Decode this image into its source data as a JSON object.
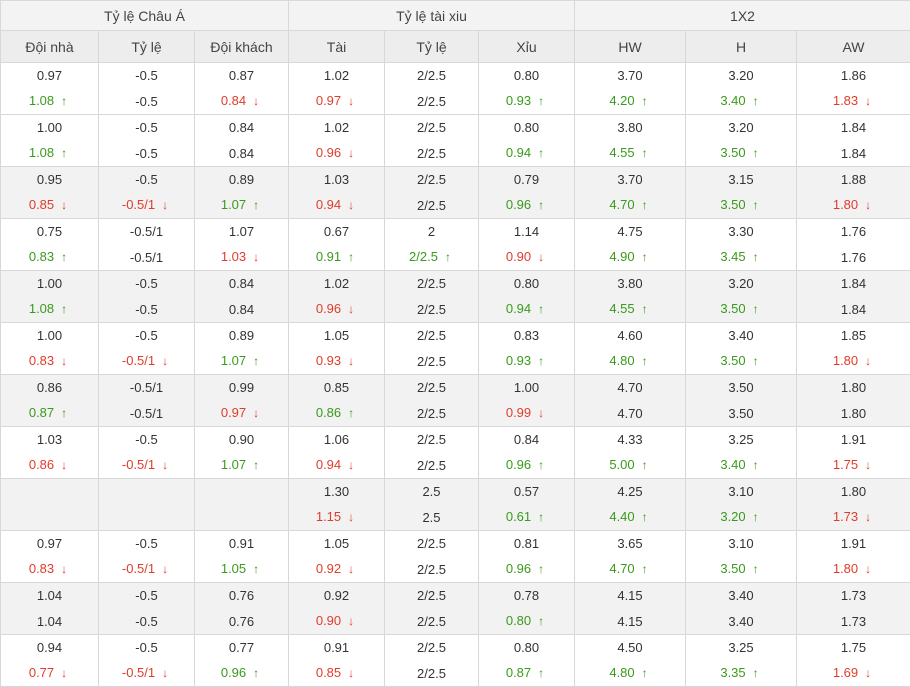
{
  "header": {
    "groups": [
      "Tỷ lệ Châu Á",
      "Tỷ lệ tài xiu",
      "1X2"
    ],
    "columns": [
      "Đội nhà",
      "Tỷ lệ",
      "Đội khách",
      "Tài",
      "Tỷ lệ",
      "Xỉu",
      "HW",
      "H",
      "AW"
    ]
  },
  "colors": {
    "up": "#3a9a1b",
    "down": "#e03c2c",
    "shaded_row": "#f2f2f2"
  },
  "icons": {
    "up": "arrow-up-icon",
    "down": "arrow-down-icon"
  },
  "rows": [
    {
      "shade": false,
      "open": [
        "0.97",
        "-0.5",
        "0.87",
        "1.02",
        "2/2.5",
        "0.80",
        "3.70",
        "3.20",
        "1.86"
      ],
      "live": [
        [
          "1.08",
          "up"
        ],
        [
          "-0.5",
          ""
        ],
        [
          "0.84",
          "down"
        ],
        [
          "0.97",
          "down"
        ],
        [
          "2/2.5",
          ""
        ],
        [
          "0.93",
          "up"
        ],
        [
          "4.20",
          "up"
        ],
        [
          "3.40",
          "up"
        ],
        [
          "1.83",
          "down"
        ]
      ]
    },
    {
      "shade": false,
      "open": [
        "1.00",
        "-0.5",
        "0.84",
        "1.02",
        "2/2.5",
        "0.80",
        "3.80",
        "3.20",
        "1.84"
      ],
      "live": [
        [
          "1.08",
          "up"
        ],
        [
          "-0.5",
          ""
        ],
        [
          "0.84",
          ""
        ],
        [
          "0.96",
          "down"
        ],
        [
          "2/2.5",
          ""
        ],
        [
          "0.94",
          "up"
        ],
        [
          "4.55",
          "up"
        ],
        [
          "3.50",
          "up"
        ],
        [
          "1.84",
          ""
        ]
      ]
    },
    {
      "shade": true,
      "open": [
        "0.95",
        "-0.5",
        "0.89",
        "1.03",
        "2/2.5",
        "0.79",
        "3.70",
        "3.15",
        "1.88"
      ],
      "live": [
        [
          "0.85",
          "down"
        ],
        [
          "-0.5/1",
          "down"
        ],
        [
          "1.07",
          "up"
        ],
        [
          "0.94",
          "down"
        ],
        [
          "2/2.5",
          ""
        ],
        [
          "0.96",
          "up"
        ],
        [
          "4.70",
          "up"
        ],
        [
          "3.50",
          "up"
        ],
        [
          "1.80",
          "down"
        ]
      ]
    },
    {
      "shade": false,
      "open": [
        "0.75",
        "-0.5/1",
        "1.07",
        "0.67",
        "2",
        "1.14",
        "4.75",
        "3.30",
        "1.76"
      ],
      "live": [
        [
          "0.83",
          "up"
        ],
        [
          "-0.5/1",
          ""
        ],
        [
          "1.03",
          "down"
        ],
        [
          "0.91",
          "up"
        ],
        [
          "2/2.5",
          "up"
        ],
        [
          "0.90",
          "down"
        ],
        [
          "4.90",
          "up"
        ],
        [
          "3.45",
          "up"
        ],
        [
          "1.76",
          ""
        ]
      ]
    },
    {
      "shade": true,
      "open": [
        "1.00",
        "-0.5",
        "0.84",
        "1.02",
        "2/2.5",
        "0.80",
        "3.80",
        "3.20",
        "1.84"
      ],
      "live": [
        [
          "1.08",
          "up"
        ],
        [
          "-0.5",
          ""
        ],
        [
          "0.84",
          ""
        ],
        [
          "0.96",
          "down"
        ],
        [
          "2/2.5",
          ""
        ],
        [
          "0.94",
          "up"
        ],
        [
          "4.55",
          "up"
        ],
        [
          "3.50",
          "up"
        ],
        [
          "1.84",
          ""
        ]
      ]
    },
    {
      "shade": false,
      "open": [
        "1.00",
        "-0.5",
        "0.89",
        "1.05",
        "2/2.5",
        "0.83",
        "4.60",
        "3.40",
        "1.85"
      ],
      "live": [
        [
          "0.83",
          "down"
        ],
        [
          "-0.5/1",
          "down"
        ],
        [
          "1.07",
          "up"
        ],
        [
          "0.93",
          "down"
        ],
        [
          "2/2.5",
          ""
        ],
        [
          "0.93",
          "up"
        ],
        [
          "4.80",
          "up"
        ],
        [
          "3.50",
          "up"
        ],
        [
          "1.80",
          "down"
        ]
      ]
    },
    {
      "shade": true,
      "open": [
        "0.86",
        "-0.5/1",
        "0.99",
        "0.85",
        "2/2.5",
        "1.00",
        "4.70",
        "3.50",
        "1.80"
      ],
      "live": [
        [
          "0.87",
          "up"
        ],
        [
          "-0.5/1",
          ""
        ],
        [
          "0.97",
          "down"
        ],
        [
          "0.86",
          "up"
        ],
        [
          "2/2.5",
          ""
        ],
        [
          "0.99",
          "down"
        ],
        [
          "4.70",
          ""
        ],
        [
          "3.50",
          ""
        ],
        [
          "1.80",
          ""
        ]
      ]
    },
    {
      "shade": false,
      "open": [
        "1.03",
        "-0.5",
        "0.90",
        "1.06",
        "2/2.5",
        "0.84",
        "4.33",
        "3.25",
        "1.91"
      ],
      "live": [
        [
          "0.86",
          "down"
        ],
        [
          "-0.5/1",
          "down"
        ],
        [
          "1.07",
          "up"
        ],
        [
          "0.94",
          "down"
        ],
        [
          "2/2.5",
          ""
        ],
        [
          "0.96",
          "up"
        ],
        [
          "5.00",
          "up"
        ],
        [
          "3.40",
          "up"
        ],
        [
          "1.75",
          "down"
        ]
      ]
    },
    {
      "shade": true,
      "open": [
        "",
        "",
        "",
        "1.30",
        "2.5",
        "0.57",
        "4.25",
        "3.10",
        "1.80"
      ],
      "live": [
        [
          "",
          ""
        ],
        [
          "",
          ""
        ],
        [
          "",
          ""
        ],
        [
          "1.15",
          "down"
        ],
        [
          "2.5",
          ""
        ],
        [
          "0.61",
          "up"
        ],
        [
          "4.40",
          "up"
        ],
        [
          "3.20",
          "up"
        ],
        [
          "1.73",
          "down"
        ]
      ]
    },
    {
      "shade": false,
      "open": [
        "0.97",
        "-0.5",
        "0.91",
        "1.05",
        "2/2.5",
        "0.81",
        "3.65",
        "3.10",
        "1.91"
      ],
      "live": [
        [
          "0.83",
          "down"
        ],
        [
          "-0.5/1",
          "down"
        ],
        [
          "1.05",
          "up"
        ],
        [
          "0.92",
          "down"
        ],
        [
          "2/2.5",
          ""
        ],
        [
          "0.96",
          "up"
        ],
        [
          "4.70",
          "up"
        ],
        [
          "3.50",
          "up"
        ],
        [
          "1.80",
          "down"
        ]
      ]
    },
    {
      "shade": true,
      "open": [
        "1.04",
        "-0.5",
        "0.76",
        "0.92",
        "2/2.5",
        "0.78",
        "4.15",
        "3.40",
        "1.73"
      ],
      "live": [
        [
          "1.04",
          ""
        ],
        [
          "-0.5",
          ""
        ],
        [
          "0.76",
          ""
        ],
        [
          "0.90",
          "down"
        ],
        [
          "2/2.5",
          ""
        ],
        [
          "0.80",
          "up"
        ],
        [
          "4.15",
          ""
        ],
        [
          "3.40",
          ""
        ],
        [
          "1.73",
          ""
        ]
      ]
    },
    {
      "shade": false,
      "open": [
        "0.94",
        "-0.5",
        "0.77",
        "0.91",
        "2/2.5",
        "0.80",
        "4.50",
        "3.25",
        "1.75"
      ],
      "live": [
        [
          "0.77",
          "down"
        ],
        [
          "-0.5/1",
          "down"
        ],
        [
          "0.96",
          "up"
        ],
        [
          "0.85",
          "down"
        ],
        [
          "2/2.5",
          ""
        ],
        [
          "0.87",
          "up"
        ],
        [
          "4.80",
          "up"
        ],
        [
          "3.35",
          "up"
        ],
        [
          "1.69",
          "down"
        ]
      ]
    }
  ]
}
